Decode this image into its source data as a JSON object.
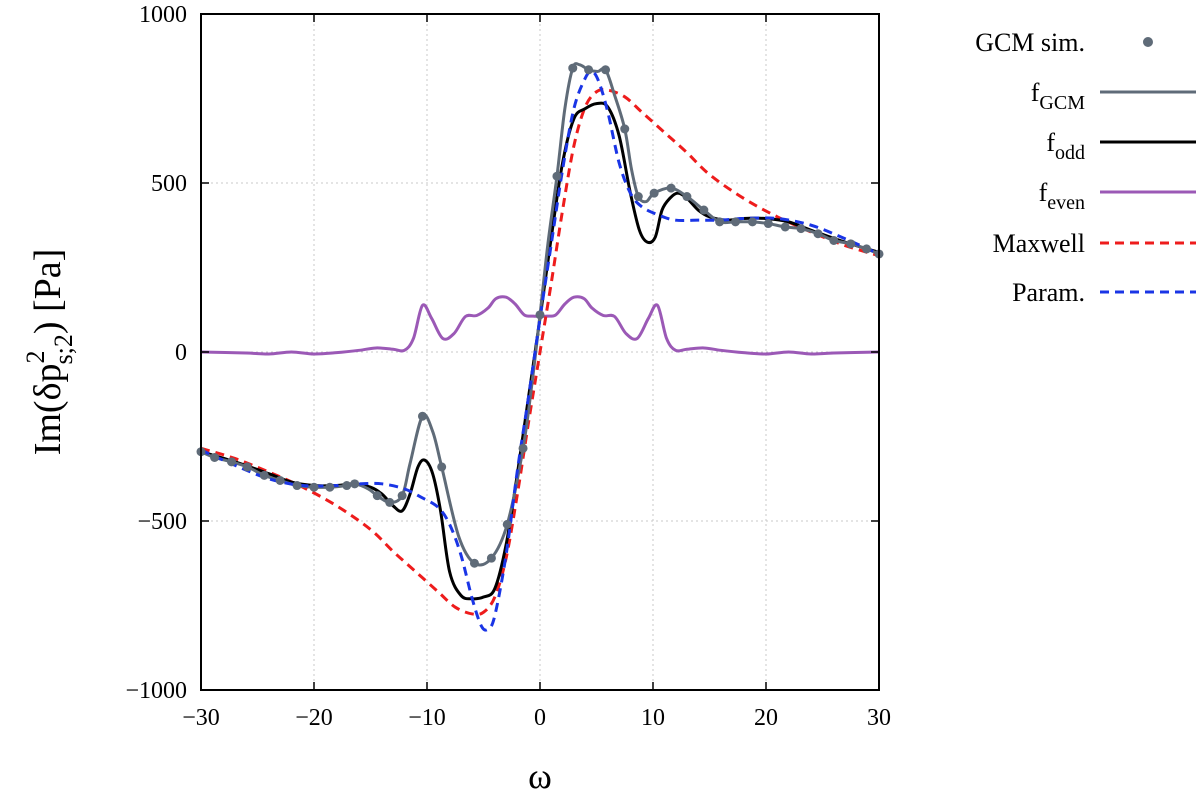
{
  "chart_data": {
    "type": "line",
    "title": "",
    "xlabel": "ω",
    "ylabel": "Im(δp",
    "ylabel_sup": "2",
    "ylabel_sub": "s;2",
    "ylabel_tail": ") [Pa]",
    "xlim": [
      -30,
      30
    ],
    "ylim": [
      -1000,
      1000
    ],
    "xticks": [
      -30,
      -20,
      -10,
      0,
      10,
      20,
      30
    ],
    "xtick_labels": [
      "−30",
      "−20",
      "−10",
      "0",
      "10",
      "20",
      "30"
    ],
    "yticks": [
      -1000,
      -500,
      0,
      500,
      1000
    ],
    "ytick_labels": [
      "−1000",
      "−500",
      "0",
      "500",
      "1000"
    ],
    "grid": true,
    "legend_position": "outside-right",
    "series": [
      {
        "name": "GCM sim.",
        "legend_base": "GCM sim.",
        "legend_sub": "",
        "style": "points",
        "color": "#5f6b78",
        "x": [
          -30,
          -28.8,
          -27.3,
          -25.9,
          -24.4,
          -23,
          -21.5,
          -20,
          -18.6,
          -17.1,
          -16.4,
          -14.4,
          -13.3,
          -12.2,
          -10.4,
          -8.7,
          -5.8,
          -4.3,
          -2.9,
          -1.5,
          0,
          1.5,
          2.9,
          4.3,
          5.8,
          7.5,
          8.7,
          10.1,
          11.6,
          13,
          14.5,
          15.9,
          17.3,
          18.8,
          20.2,
          21.7,
          23.1,
          24.6,
          26,
          27.5,
          28.9,
          30
        ],
        "y": [
          -295,
          -312,
          -325,
          -340,
          -365,
          -380,
          -395,
          -400,
          -400,
          -395,
          -390,
          -425,
          -445,
          -425,
          -190,
          -340,
          -625,
          -610,
          -510,
          -285,
          110,
          520,
          840,
          835,
          835,
          660,
          460,
          470,
          485,
          460,
          420,
          385,
          385,
          385,
          380,
          370,
          365,
          350,
          330,
          320,
          305,
          290
        ]
      },
      {
        "name": "f_GCM",
        "legend_base": "f",
        "legend_sub": "GCM",
        "style": "solid",
        "color": "#5f6b78",
        "x": [
          -30,
          -28.8,
          -27.3,
          -25.9,
          -24.4,
          -23,
          -21.5,
          -20,
          -18.6,
          -17.1,
          -16.4,
          -15.2,
          -14.4,
          -13.3,
          -12.2,
          -11.5,
          -10.4,
          -9.5,
          -8.7,
          -7.2,
          -5.8,
          -4.3,
          -2.9,
          -1.5,
          -0.7,
          0,
          0.7,
          1.5,
          2.2,
          2.9,
          3.5,
          4.3,
          5.1,
          5.8,
          6.6,
          7.5,
          8.1,
          8.7,
          9.4,
          10.1,
          11.6,
          13,
          14.5,
          15.9,
          17.3,
          18.8,
          20.2,
          21.7,
          23.1,
          24.6,
          26,
          27.5,
          28.9,
          30
        ],
        "y": [
          -295,
          -312,
          -325,
          -340,
          -365,
          -380,
          -395,
          -400,
          -400,
          -395,
          -390,
          -405,
          -425,
          -445,
          -425,
          -330,
          -190,
          -235,
          -340,
          -545,
          -625,
          -610,
          -510,
          -285,
          -90,
          110,
          320,
          520,
          720,
          840,
          850,
          835,
          830,
          835,
          760,
          660,
          540,
          460,
          445,
          470,
          485,
          460,
          420,
          385,
          385,
          385,
          380,
          370,
          365,
          350,
          330,
          320,
          305,
          290
        ]
      },
      {
        "name": "f_odd",
        "legend_base": "f",
        "legend_sub": "odd",
        "style": "solid",
        "color": "#000000",
        "x": [
          -30,
          -27,
          -24,
          -22,
          -20,
          -18,
          -16.5,
          -15,
          -14,
          -13,
          -12.2,
          -11.5,
          -10.8,
          -10.2,
          -9.5,
          -8.8,
          -8,
          -7,
          -6,
          -5,
          -4,
          -3,
          -2,
          -1,
          0,
          1,
          2,
          3,
          4,
          5,
          6,
          7,
          8,
          8.8,
          9.5,
          10.2,
          10.8,
          11.5,
          12.2,
          13,
          14,
          15,
          16.5,
          18,
          20,
          22,
          24,
          27,
          30
        ],
        "y": [
          -295,
          -325,
          -360,
          -385,
          -395,
          -395,
          -390,
          -400,
          -420,
          -455,
          -470,
          -420,
          -340,
          -320,
          -360,
          -470,
          -650,
          -720,
          -730,
          -725,
          -700,
          -570,
          -360,
          -130,
          100,
          340,
          560,
          690,
          720,
          735,
          725,
          640,
          470,
          360,
          325,
          340,
          420,
          455,
          470,
          455,
          420,
          400,
          390,
          395,
          395,
          385,
          360,
          325,
          295
        ]
      },
      {
        "name": "f_even",
        "legend_base": "f",
        "legend_sub": "even",
        "style": "solid",
        "color": "#9b59b6",
        "x": [
          -30,
          -26,
          -24,
          -22,
          -20,
          -18,
          -16,
          -14.5,
          -13,
          -12,
          -11.2,
          -10.4,
          -9.6,
          -8.6,
          -7.6,
          -6.6,
          -5.6,
          -4.6,
          -3.9,
          -3,
          -2.2,
          -1.4,
          -0.6,
          0,
          0.6,
          1.4,
          2.2,
          3,
          3.9,
          4.6,
          5.6,
          6.6,
          7.6,
          8.6,
          9.6,
          10.4,
          11.2,
          12,
          13,
          14.5,
          16,
          18,
          20,
          22,
          24,
          26,
          30
        ],
        "y": [
          0,
          -3,
          -6,
          0,
          -6,
          -2,
          5,
          12,
          8,
          5,
          40,
          138,
          100,
          40,
          55,
          105,
          108,
          130,
          158,
          162,
          142,
          110,
          106,
          106,
          106,
          110,
          142,
          162,
          158,
          130,
          108,
          105,
          55,
          40,
          100,
          138,
          40,
          5,
          8,
          12,
          5,
          -2,
          -6,
          0,
          -6,
          -3,
          0
        ]
      },
      {
        "name": "Maxwell",
        "legend_base": "Maxwell",
        "legend_sub": "",
        "style": "dashed",
        "color": "#ee1c1c",
        "x": [
          -30,
          -27,
          -24,
          -21,
          -18,
          -15,
          -13,
          -11,
          -9,
          -7.5,
          -6,
          -5,
          -4,
          -3,
          -2,
          -1,
          0,
          1,
          2,
          3,
          4,
          5,
          6,
          7.5,
          9,
          11,
          13,
          15,
          18,
          21,
          24,
          27,
          30
        ],
        "y": [
          -285,
          -315,
          -355,
          -400,
          -455,
          -525,
          -590,
          -650,
          -710,
          -755,
          -775,
          -770,
          -725,
          -610,
          -420,
          -205,
          0,
          205,
          420,
          610,
          725,
          770,
          775,
          755,
          710,
          650,
          590,
          525,
          455,
          400,
          355,
          315,
          285
        ]
      },
      {
        "name": "Param.",
        "legend_base": "Param.",
        "legend_sub": "",
        "style": "dashed",
        "color": "#1a35e6",
        "x": [
          -30,
          -27,
          -24,
          -21,
          -18,
          -16,
          -14,
          -12,
          -10.5,
          -9,
          -8,
          -7,
          -6,
          -5.2,
          -4.6,
          -4,
          -3,
          -2,
          -1,
          0,
          1,
          2,
          3,
          4,
          4.6,
          5.2,
          6,
          7,
          8,
          9,
          10.5,
          12,
          14,
          16,
          18,
          21,
          24,
          27,
          30
        ],
        "y": [
          -290,
          -335,
          -375,
          -395,
          -395,
          -390,
          -390,
          -405,
          -430,
          -460,
          -510,
          -600,
          -730,
          -810,
          -820,
          -780,
          -600,
          -350,
          -130,
          100,
          320,
          540,
          720,
          810,
          830,
          800,
          710,
          560,
          470,
          430,
          405,
          390,
          390,
          390,
          395,
          395,
          375,
          335,
          290
        ]
      }
    ]
  }
}
